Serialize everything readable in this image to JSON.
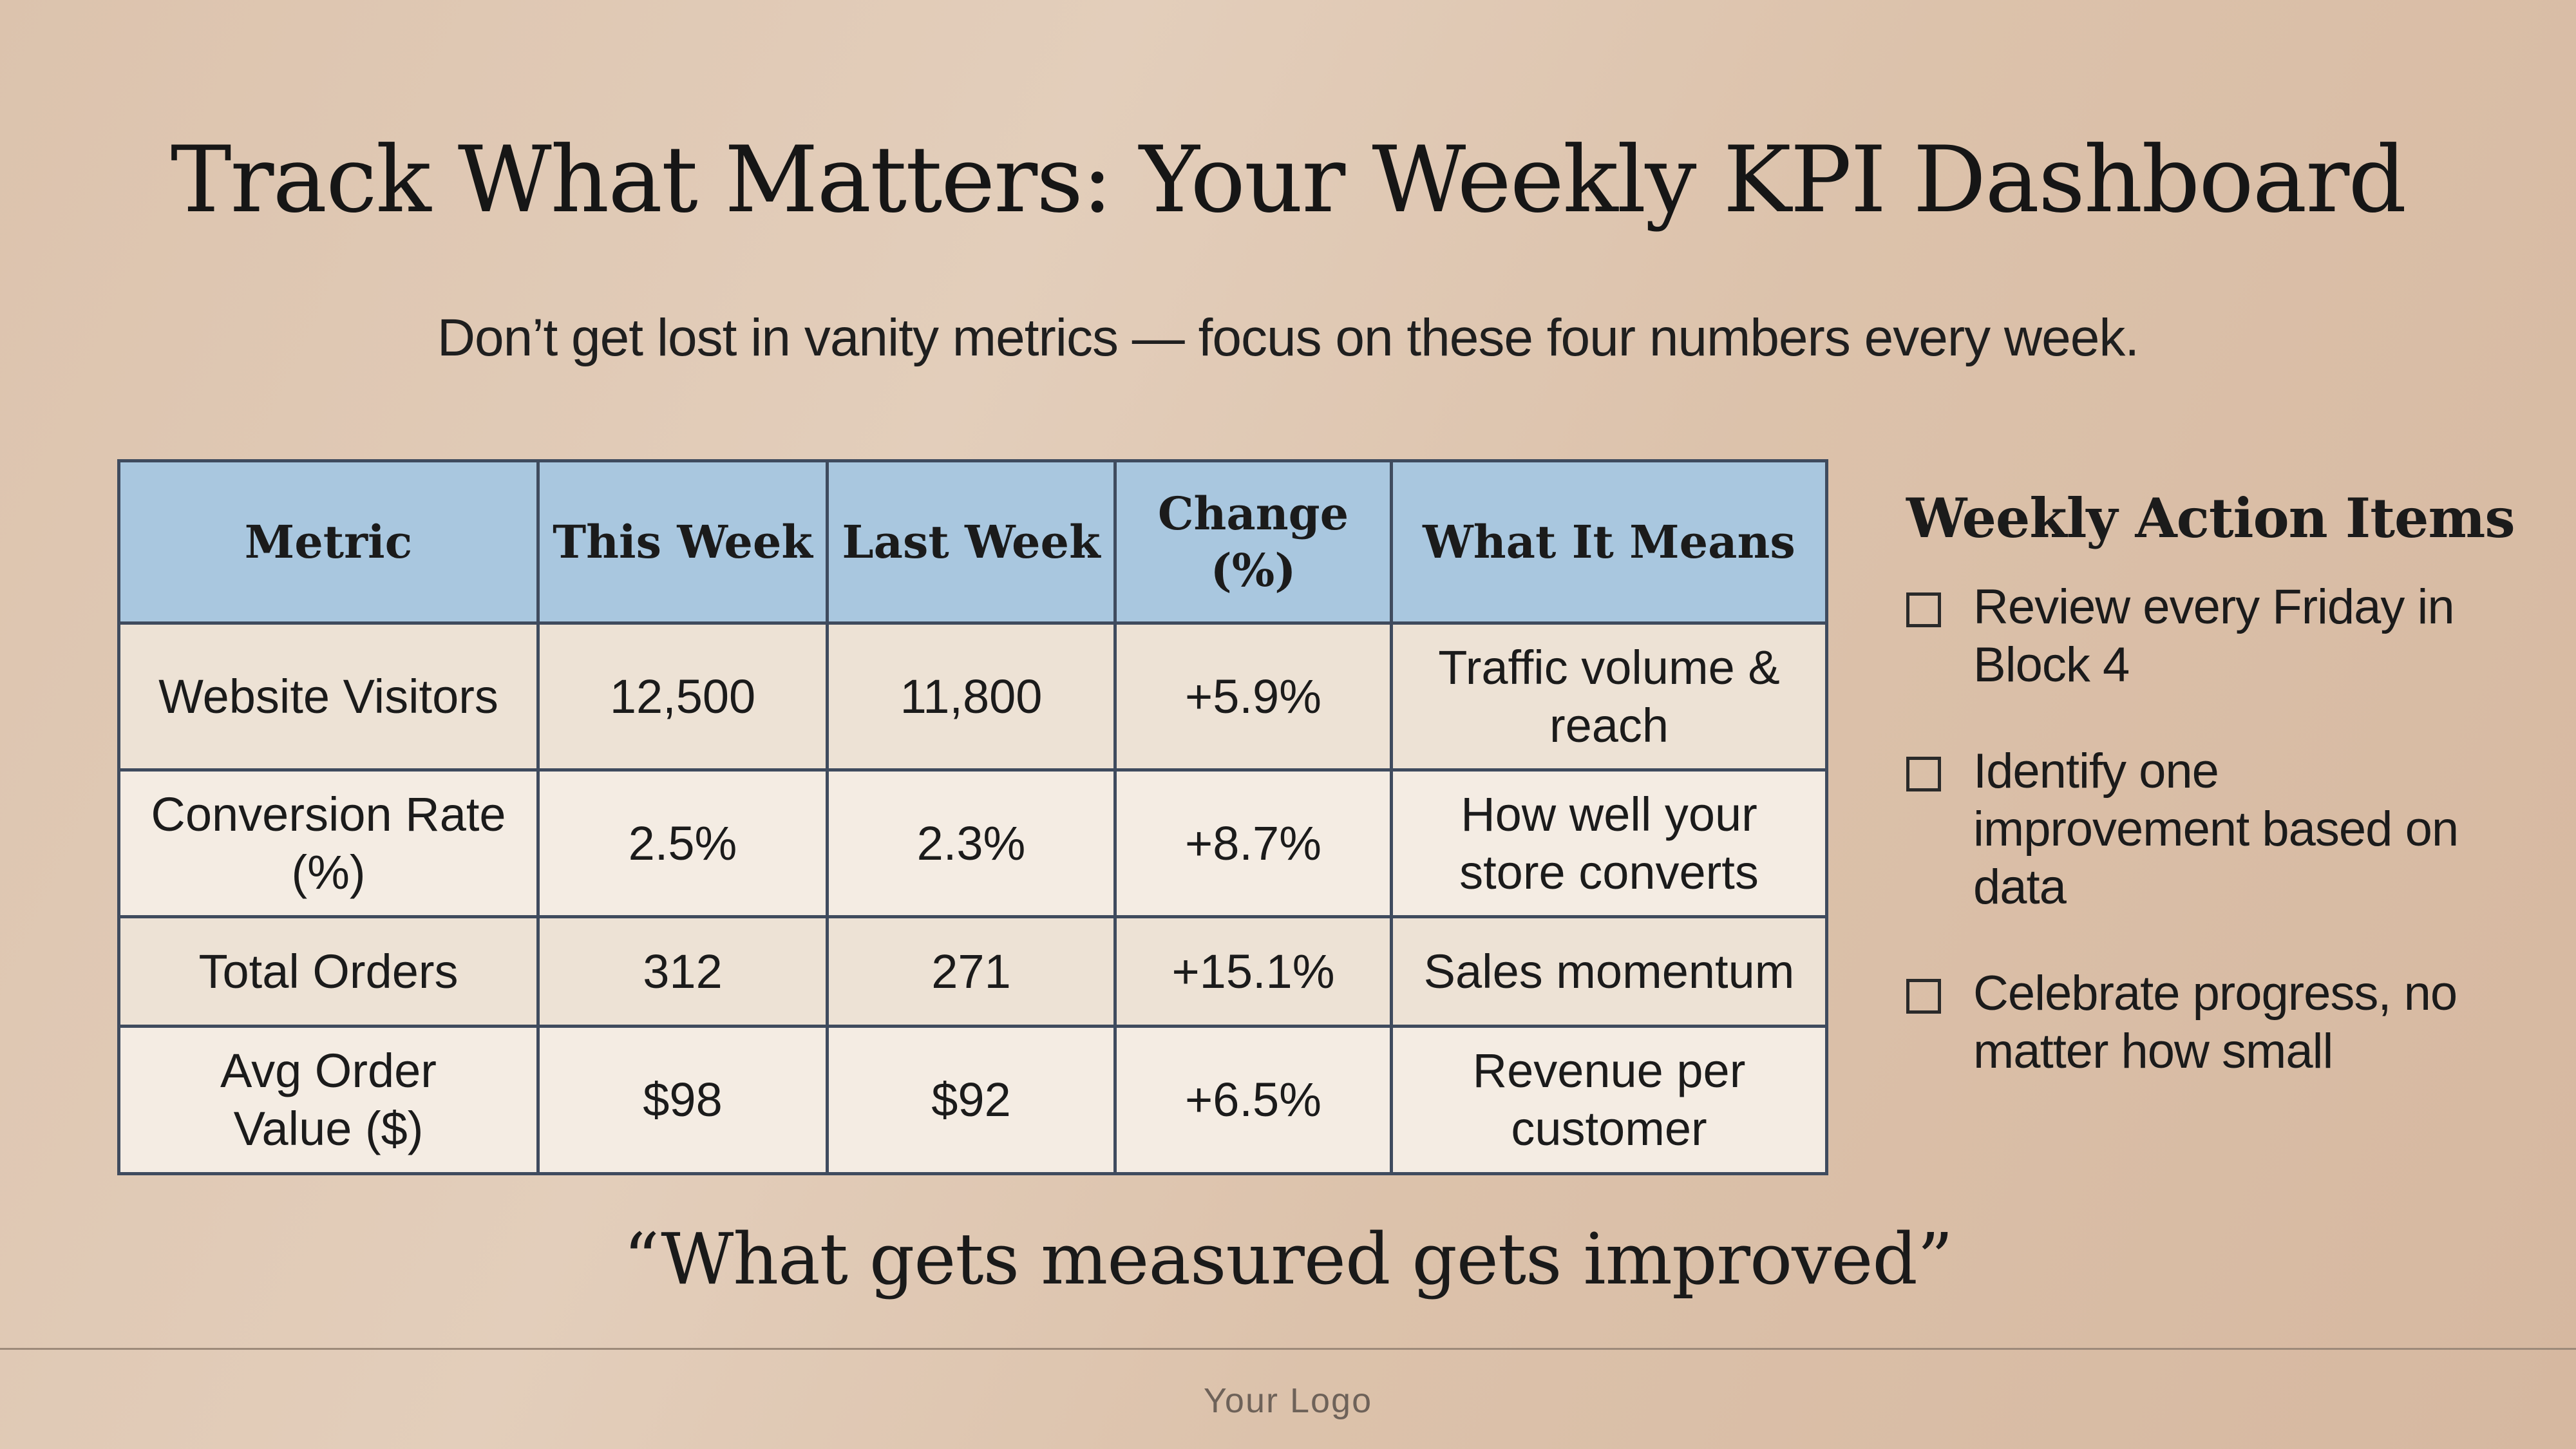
{
  "title": "Track What Matters: Your Weekly KPI Dashboard",
  "subtitle": "Don’t get lost in vanity metrics — focus on these four numbers every week.",
  "table": {
    "headers": [
      "Metric",
      "This Week",
      "Last Week",
      "Change (%)",
      "What It Means"
    ],
    "rows": [
      [
        "Website Visitors",
        "12,500",
        "11,800",
        "+5.9%",
        "Traffic volume & reach"
      ],
      [
        "Conversion Rate (%)",
        "2.5%",
        "2.3%",
        "+8.7%",
        "How well your store converts"
      ],
      [
        "Total Orders",
        "312",
        "271",
        "+15.1%",
        "Sales momentum"
      ],
      [
        "Avg Order Value ($)",
        "$98",
        "$92",
        "+6.5%",
        "Revenue per customer"
      ]
    ]
  },
  "actions": {
    "title": "Weekly Action Items",
    "items": [
      {
        "label": "Review every Friday in Block 4",
        "checked": false
      },
      {
        "label": "Identify one improvement based on data",
        "checked": false
      },
      {
        "label": "Celebrate progress, no matter how small",
        "checked": false
      }
    ]
  },
  "quote": "“What gets measured gets improved”",
  "footer": {
    "logo": "Your Logo"
  },
  "colors": {
    "header_bg": "#a9c7df",
    "row_odd_bg": "#ede2d5",
    "row_even_bg": "#f4ece3",
    "border": "#3f4b5e"
  }
}
